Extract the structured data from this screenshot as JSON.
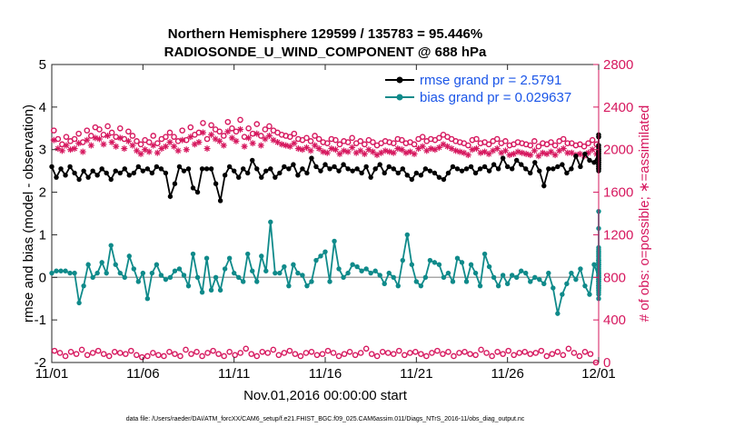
{
  "chart_data": {
    "type": "line",
    "title": "Northern Hemisphere 129599 / 135783 = 95.446%",
    "subtitle": "RADIOSONDE_U_WIND_COMPONENT @ 688 hPa",
    "xlabel": "Nov.01,2016 00:00:00 start",
    "ylabel": "rmse and bias (model - observation)",
    "ylabel_right": "# of obs: o=possible; ∗=assimilated",
    "footnote": "data file: /Users/raeder/DAI/ATM_forcXX/CAM6_setup/f.e21.FHIST_BGC.f09_025.CAM6assim.011/Diags_NTrS_2016-11/obs_diag_output.nc",
    "xlim": [
      0,
      30
    ],
    "ylim": [
      -2,
      5
    ],
    "ylim_right": [
      0,
      2800
    ],
    "x_ticks": [
      0,
      5,
      10,
      15,
      20,
      25,
      30
    ],
    "x_tick_labels": [
      "11/01",
      "11/06",
      "11/11",
      "11/16",
      "11/21",
      "11/26",
      "12/01"
    ],
    "y_ticks": [
      -2,
      -1,
      0,
      1,
      2,
      3,
      4,
      5
    ],
    "y_tick_labels": [
      "-2",
      "-1",
      "0",
      "1",
      "2",
      "3",
      "4",
      "5"
    ],
    "y_ticks_right": [
      0,
      400,
      800,
      1200,
      1600,
      2000,
      2400,
      2800
    ],
    "y_tick_labels_right": [
      "0",
      "400",
      "800",
      "1200",
      "1600",
      "2000",
      "2400",
      "2800"
    ],
    "x_step": 0.25,
    "legend_position": "top-right",
    "colors": {
      "rmse": "#000000",
      "bias": "#0f8a8a",
      "obs": "#d6175e",
      "zero": "#a9a9a9",
      "legend_text": "#1a55e8"
    },
    "series": [
      {
        "name": "rmse grand pr = 2.5791",
        "axis": "left",
        "values": [
          2.6,
          2.35,
          2.55,
          2.4,
          2.6,
          2.45,
          2.3,
          2.5,
          2.35,
          2.5,
          2.4,
          2.55,
          2.45,
          2.3,
          2.5,
          2.45,
          2.55,
          2.4,
          2.45,
          2.6,
          2.5,
          2.55,
          2.45,
          2.6,
          2.55,
          2.45,
          1.9,
          2.2,
          2.6,
          2.5,
          2.55,
          2.1,
          2.0,
          2.55,
          2.55,
          2.55,
          2.2,
          1.8,
          2.4,
          2.6,
          2.5,
          2.35,
          2.55,
          2.45,
          2.75,
          2.55,
          2.35,
          2.5,
          2.55,
          2.35,
          2.45,
          2.6,
          2.55,
          2.65,
          2.4,
          2.55,
          2.45,
          2.8,
          2.6,
          2.5,
          2.65,
          2.55,
          2.6,
          2.5,
          2.65,
          2.55,
          2.5,
          2.55,
          2.45,
          2.6,
          2.35,
          2.55,
          2.65,
          2.45,
          2.6,
          2.55,
          2.45,
          2.55,
          2.4,
          2.3,
          2.45,
          2.4,
          2.55,
          2.5,
          2.45,
          2.35,
          2.3,
          2.45,
          2.6,
          2.55,
          2.5,
          2.55,
          2.6,
          2.45,
          2.55,
          2.6,
          2.5,
          2.65,
          2.55,
          2.8,
          2.6,
          2.55,
          2.75,
          2.65,
          2.55,
          2.45,
          2.7,
          2.5,
          2.15,
          2.55,
          2.55,
          2.6,
          2.65,
          2.45,
          2.55,
          2.85,
          2.6,
          2.9,
          2.75,
          2.7,
          2.9,
          3.1,
          2.65,
          2.55,
          3.0,
          2.7,
          2.85,
          2.75,
          2.65,
          2.55,
          2.7,
          2.55,
          2.65,
          2.6,
          2.5,
          2.7,
          2.8,
          2.75,
          2.95,
          2.7,
          2.6,
          2.75,
          2.9,
          2.7,
          2.8,
          2.55,
          2.85,
          2.7,
          2.75,
          3.0,
          2.9,
          2.8,
          2.75,
          3.3,
          3.0,
          3.35,
          2.95,
          3.3,
          3.1,
          2.8,
          2.95,
          2.9,
          3.05,
          2.9,
          2.6,
          2.7,
          2.75,
          2.85,
          2.95,
          3.0,
          2.75,
          2.65
        ]
      },
      {
        "name": "bias grand pr = 0.029637",
        "axis": "left",
        "values": [
          0.1,
          0.15,
          0.15,
          0.15,
          0.1,
          0.1,
          -0.6,
          -0.2,
          0.3,
          0.0,
          0.1,
          0.35,
          0.1,
          0.75,
          0.3,
          0.1,
          0.0,
          0.5,
          0.2,
          -0.1,
          0.1,
          -0.5,
          0.1,
          0.3,
          0.05,
          -0.05,
          0.0,
          0.15,
          0.2,
          0.05,
          -0.2,
          0.55,
          0.0,
          -0.35,
          0.45,
          -0.3,
          0.0,
          -0.3,
          0.2,
          0.45,
          0.1,
          0.0,
          -0.1,
          0.55,
          0.15,
          -0.1,
          0.5,
          0.15,
          1.3,
          0.1,
          0.1,
          0.25,
          -0.2,
          0.3,
          0.1,
          0.05,
          -0.2,
          -0.1,
          0.4,
          0.5,
          0.6,
          -0.1,
          0.85,
          0.2,
          0.0,
          0.1,
          0.3,
          0.25,
          0.15,
          0.2,
          0.1,
          0.15,
          0.05,
          -0.15,
          0.1,
          0.0,
          -0.2,
          0.4,
          1.0,
          0.3,
          -0.1,
          -0.2,
          0.0,
          0.4,
          0.35,
          0.3,
          0.0,
          0.1,
          -0.1,
          0.45,
          0.35,
          -0.1,
          0.3,
          0.1,
          -0.2,
          0.55,
          0.25,
          0.0,
          -0.2,
          0.05,
          -0.15,
          0.05,
          0.0,
          0.15,
          0.1,
          -0.1,
          0.0,
          -0.05,
          -0.15,
          0.1,
          -0.25,
          -0.85,
          -0.4,
          -0.15,
          0.1,
          -0.05,
          0.2,
          -0.2,
          -0.4,
          0.3,
          0.0,
          0.35,
          -0.1,
          0.0,
          -0.3,
          0.05,
          -0.15,
          -0.2,
          0.5,
          0.3,
          -0.05,
          0.15,
          0.6,
          0.25,
          -0.15,
          -0.3,
          0.05,
          0.3,
          -0.1,
          -0.4,
          -0.05,
          0.3,
          0.5,
          0.05,
          0.0,
          -0.2,
          0.0,
          0.1,
          -0.2,
          0.55,
          0.15,
          0.25,
          0.3,
          0.1,
          -0.05,
          -0.25,
          0.4,
          0.0,
          0.6,
          0.4,
          0.1,
          0.35,
          0.2,
          -0.25,
          -0.1,
          0.05,
          -0.2,
          0.1,
          0.2,
          0.45,
          -0.35,
          0.4,
          0.0,
          0.15,
          1.55,
          -0.1,
          0.2,
          0.4,
          0.7,
          0.1,
          0.0,
          -0.25,
          0.35,
          0.0,
          0.55,
          0.3,
          -0.05,
          1.15,
          0.4,
          0.0,
          0.65,
          0.1,
          -0.25,
          -0.5
        ]
      },
      {
        "name": "obs possible",
        "axis": "right",
        "marker": "o",
        "values": [
          2180,
          2100,
          2050,
          2120,
          2080,
          2100,
          2150,
          2070,
          2180,
          2130,
          2210,
          2190,
          2140,
          2220,
          2160,
          2120,
          2200,
          2100,
          2170,
          2130,
          2080,
          2050,
          2090,
          2070,
          2130,
          2060,
          2100,
          2120,
          2160,
          2120,
          2080,
          2180,
          2090,
          2210,
          2140,
          2160,
          2250,
          2100,
          2230,
          2190,
          2170,
          2130,
          2260,
          2200,
          2170,
          2280,
          2120,
          2200,
          2150,
          2240,
          2130,
          2190,
          2220,
          2180,
          2160,
          2140,
          2130,
          2120,
          2150,
          2100,
          2090,
          2110,
          2080,
          2130,
          2100,
          2070,
          2060,
          2100,
          2090,
          2050,
          2080,
          2070,
          2110,
          2060,
          2080,
          2050,
          2090,
          2070,
          2040,
          2060,
          2080,
          2070,
          2060,
          2100,
          2090,
          2060,
          2070,
          2050,
          2100,
          2120,
          2080,
          2100,
          2090,
          2110,
          2140,
          2120,
          2100,
          2080,
          2070,
          2060,
          2040,
          2090,
          2100,
          2060,
          2070,
          2050,
          2080,
          2100,
          2060,
          2080,
          2040,
          2050,
          2070,
          2060,
          2050,
          2040,
          2080,
          2030,
          2060,
          2050,
          2070,
          2040,
          2080,
          2100,
          2060,
          2060,
          2040,
          2050,
          2030,
          2060,
          2090,
          2050
        ]
      },
      {
        "name": "obs assimilated",
        "axis": "right",
        "marker": "*",
        "values": [
          2090,
          2010,
          1990,
          2040,
          2000,
          2010,
          2060,
          1980,
          2090,
          2040,
          2110,
          2100,
          2050,
          2130,
          2070,
          2030,
          2110,
          2010,
          2080,
          2040,
          1990,
          1960,
          2000,
          1980,
          2040,
          1970,
          2010,
          2030,
          2070,
          2030,
          1990,
          2090,
          2000,
          2120,
          2050,
          2070,
          2160,
          2010,
          2140,
          2100,
          2080,
          2040,
          2170,
          2110,
          2080,
          2190,
          2030,
          2110,
          2060,
          2150,
          2040,
          2100,
          2130,
          2090,
          2070,
          2050,
          2040,
          2030,
          2060,
          2010,
          2000,
          2020,
          1990,
          2040,
          2010,
          1980,
          1970,
          2010,
          2000,
          1960,
          1990,
          1980,
          2020,
          1970,
          1990,
          1960,
          2000,
          1980,
          1950,
          1970,
          1990,
          1980,
          1970,
          2010,
          2000,
          1970,
          1980,
          1960,
          2010,
          2030,
          1990,
          2010,
          2000,
          2020,
          2050,
          2030,
          2010,
          1990,
          1980,
          1970,
          1950,
          2000,
          2010,
          1970,
          1980,
          1960,
          1990,
          2010,
          1970,
          1990,
          1950,
          1960,
          1980,
          1970,
          1960,
          1950,
          1990,
          1940,
          1970,
          1960,
          1980,
          1950,
          1990,
          2010,
          1970,
          1970,
          1950,
          1960,
          1940,
          1970,
          2000,
          1960
        ]
      },
      {
        "name": "obs possible (lower)",
        "axis": "right",
        "marker": "o",
        "values": [
          110,
          90,
          60,
          100,
          80,
          120,
          70,
          90,
          110,
          80,
          60,
          100,
          90,
          80,
          110,
          70,
          50,
          60,
          90,
          70,
          60,
          100,
          80,
          60,
          120,
          80,
          100,
          60,
          90,
          110,
          80,
          60,
          100,
          70,
          90,
          130,
          80,
          60,
          100,
          90,
          120,
          70,
          90,
          110,
          80,
          60,
          90,
          100,
          70,
          80,
          110,
          90,
          60,
          80,
          100,
          70,
          90,
          130,
          80,
          60,
          100,
          90,
          80,
          110,
          70,
          90,
          100,
          80,
          60,
          90,
          110,
          80,
          100,
          60,
          90,
          100,
          80,
          70,
          120,
          90,
          60,
          100,
          80,
          110,
          70,
          90,
          100,
          80,
          90,
          110,
          60,
          80,
          100,
          70,
          130,
          90,
          60,
          100,
          80,
          0
        ]
      }
    ],
    "legend": [
      {
        "label": "rmse grand pr = 2.5791",
        "color": "#000000"
      },
      {
        "label": "bias grand pr = 0.029637",
        "color": "#0f8a8a"
      }
    ]
  }
}
